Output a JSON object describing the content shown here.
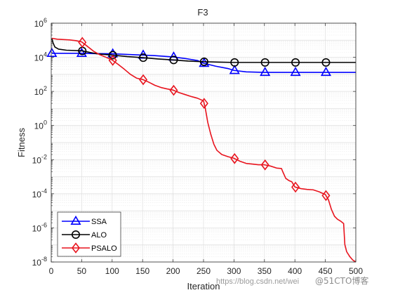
{
  "chart_data": {
    "type": "line",
    "title": "F3",
    "xlabel": "Iteration",
    "ylabel": "Fitness",
    "xlim": [
      0,
      500
    ],
    "ylim": [
      1e-08,
      1000000.0
    ],
    "yscale": "log",
    "grid": true,
    "legend_position": "bottom-left",
    "x_ticks": [
      0,
      50,
      100,
      150,
      200,
      250,
      300,
      350,
      400,
      450,
      500
    ],
    "y_ticks": [
      {
        "base": "10",
        "exp": "-8"
      },
      {
        "base": "10",
        "exp": "-6"
      },
      {
        "base": "10",
        "exp": "-4"
      },
      {
        "base": "10",
        "exp": "-2"
      },
      {
        "base": "10",
        "exp": "0"
      },
      {
        "base": "10",
        "exp": "2"
      },
      {
        "base": "10",
        "exp": "4"
      },
      {
        "base": "10",
        "exp": "6"
      }
    ],
    "series": [
      {
        "name": "SSA",
        "color": "#0000ff",
        "marker": "triangle",
        "points": [
          [
            1,
            17000
          ],
          [
            10,
            17000
          ],
          [
            30,
            17000
          ],
          [
            50,
            17000
          ],
          [
            70,
            16500
          ],
          [
            100,
            16000
          ],
          [
            130,
            14500
          ],
          [
            150,
            13500
          ],
          [
            170,
            12500
          ],
          [
            200,
            10500
          ],
          [
            220,
            8500
          ],
          [
            240,
            6500
          ],
          [
            250,
            4500
          ],
          [
            270,
            3000
          ],
          [
            290,
            2200
          ],
          [
            300,
            1700
          ],
          [
            320,
            1400
          ],
          [
            350,
            1300
          ],
          [
            380,
            1300
          ],
          [
            400,
            1300
          ],
          [
            430,
            1300
          ],
          [
            450,
            1300
          ],
          [
            480,
            1300
          ],
          [
            500,
            1300
          ]
        ],
        "marker_x": [
          1,
          50,
          101,
          151,
          201,
          251,
          301,
          351,
          401,
          451
        ]
      },
      {
        "name": "ALO",
        "color": "#000000",
        "marker": "circle",
        "points": [
          [
            1,
            130000
          ],
          [
            3,
            70000
          ],
          [
            6,
            40000
          ],
          [
            12,
            30000
          ],
          [
            25,
            26000
          ],
          [
            50,
            24000
          ],
          [
            75,
            16000
          ],
          [
            100,
            13500
          ],
          [
            125,
            11000
          ],
          [
            150,
            9500
          ],
          [
            175,
            8000
          ],
          [
            200,
            7000
          ],
          [
            225,
            6000
          ],
          [
            250,
            5500
          ],
          [
            275,
            5200
          ],
          [
            300,
            5000
          ],
          [
            325,
            5000
          ],
          [
            350,
            5000
          ],
          [
            375,
            5000
          ],
          [
            400,
            5000
          ],
          [
            425,
            5000
          ],
          [
            450,
            5000
          ],
          [
            475,
            5000
          ],
          [
            500,
            5000
          ]
        ],
        "marker_x": [
          51,
          101,
          151,
          201,
          251,
          301,
          351,
          401,
          451
        ]
      },
      {
        "name": "PSALO",
        "color": "#e8141e",
        "marker": "diamond",
        "points": [
          [
            1,
            130000
          ],
          [
            10,
            115000
          ],
          [
            20,
            110000
          ],
          [
            30,
            105000
          ],
          [
            40,
            95000
          ],
          [
            50,
            80000
          ],
          [
            60,
            42000
          ],
          [
            70,
            22000
          ],
          [
            80,
            14000
          ],
          [
            90,
            10000
          ],
          [
            100,
            7000
          ],
          [
            110,
            3800
          ],
          [
            120,
            2000
          ],
          [
            130,
            1000
          ],
          [
            140,
            600
          ],
          [
            150,
            500
          ],
          [
            160,
            350
          ],
          [
            170,
            230
          ],
          [
            180,
            170
          ],
          [
            190,
            140
          ],
          [
            200,
            120
          ],
          [
            210,
            85
          ],
          [
            220,
            65
          ],
          [
            230,
            50
          ],
          [
            240,
            40
          ],
          [
            250,
            28
          ],
          [
            253,
            10
          ],
          [
            257,
            1.5
          ],
          [
            262,
            0.3
          ],
          [
            267,
            0.08
          ],
          [
            272,
            0.035
          ],
          [
            280,
            0.02
          ],
          [
            290,
            0.015
          ],
          [
            300,
            0.012
          ],
          [
            310,
            0.008
          ],
          [
            320,
            0.006
          ],
          [
            330,
            0.0055
          ],
          [
            340,
            0.005
          ],
          [
            350,
            0.005
          ],
          [
            360,
            0.0042
          ],
          [
            370,
            0.0032
          ],
          [
            378,
            0.003
          ],
          [
            380,
            0.002
          ],
          [
            385,
            0.0008
          ],
          [
            390,
            0.0006
          ],
          [
            395,
            0.0005
          ],
          [
            400,
            0.00025
          ],
          [
            410,
            0.0002
          ],
          [
            420,
            0.00018
          ],
          [
            430,
            0.00017
          ],
          [
            440,
            0.00013
          ],
          [
            450,
            9e-05
          ],
          [
            455,
            4.5e-05
          ],
          [
            460,
            1.2e-05
          ],
          [
            465,
            4.8e-06
          ],
          [
            470,
            3.2e-06
          ],
          [
            475,
            2.5e-06
          ],
          [
            480,
            1.8e-06
          ],
          [
            482,
            1.05e-07
          ],
          [
            485,
            4e-08
          ],
          [
            490,
            2.1e-08
          ],
          [
            495,
            1.3e-08
          ],
          [
            500,
            1e-08
          ]
        ],
        "marker_x": [
          51,
          101,
          151,
          201,
          251,
          301,
          351,
          401,
          451
        ]
      }
    ]
  },
  "watermark": {
    "url_text": "https://blog.csdn.net/wei",
    "brand_text": "@51CTO博客"
  }
}
